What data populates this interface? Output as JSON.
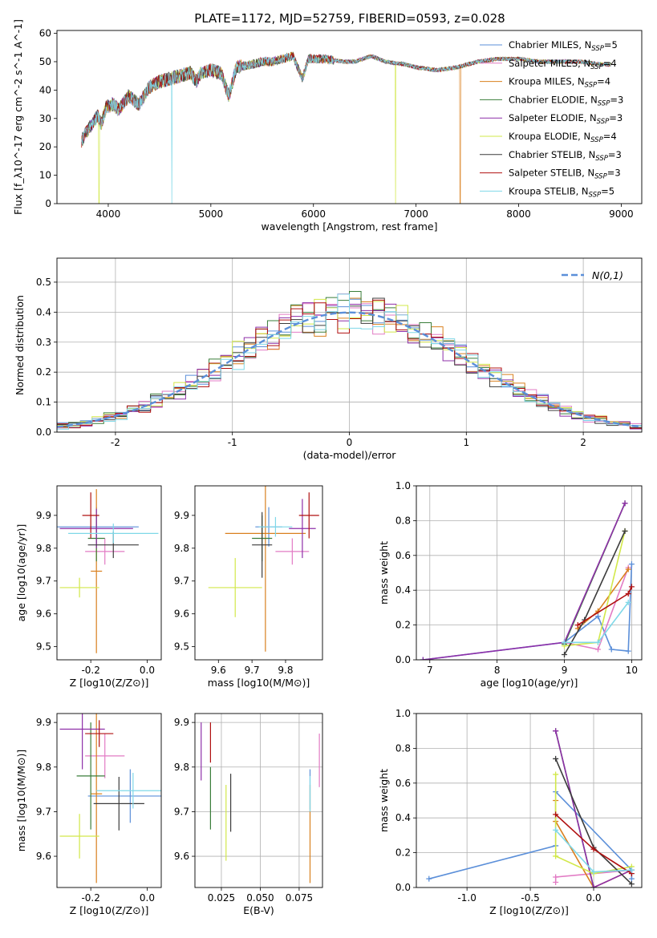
{
  "figure_title": "PLATE=1172, MJD=52759, FIBERID=0593, z=0.028",
  "colors": {
    "Chabrier MILES": "#5b8fd9",
    "Salpeter MILES": "#e27bc4",
    "Kroupa MILES": "#d9801e",
    "Chabrier ELODIE": "#3a7d3a",
    "Salpeter ELODIE": "#8e2fa8",
    "Kroupa ELODIE": "#d2e84a",
    "Chabrier STELIB": "#3c3c3c",
    "Salpeter STELIB": "#b01010",
    "Kroupa STELIB": "#7fd8e8"
  },
  "chart_data": [
    {
      "id": "spectrum",
      "type": "line",
      "xlabel": "wavelength [Angstrom, rest frame]",
      "ylabel": "Flux [f_λ10^-17 erg cm^-2 s^-1 A^-1]",
      "xlim": [
        3500,
        9200
      ],
      "ylim": [
        0,
        61
      ],
      "xticks": [
        4000,
        5000,
        6000,
        7000,
        8000,
        9000
      ],
      "yticks": [
        0,
        10,
        20,
        30,
        40,
        50,
        60
      ],
      "grid": false,
      "legend_position": "top-right",
      "legend": [
        {
          "name": "Chabrier MILES",
          "nssp": "5"
        },
        {
          "name": "Salpeter MILES",
          "nssp": "4"
        },
        {
          "name": "Kroupa MILES",
          "nssp": "4"
        },
        {
          "name": "Chabrier ELODIE",
          "nssp": "3"
        },
        {
          "name": "Salpeter ELODIE",
          "nssp": "3"
        },
        {
          "name": "Kroupa ELODIE",
          "nssp": "4"
        },
        {
          "name": "Chabrier STELIB",
          "nssp": "3"
        },
        {
          "name": "Salpeter STELIB",
          "nssp": "3"
        },
        {
          "name": "Kroupa STELIB",
          "nssp": "5"
        }
      ],
      "continuum": [
        [
          3740,
          22
        ],
        [
          3780,
          25
        ],
        [
          3840,
          28
        ],
        [
          3900,
          31
        ],
        [
          3930,
          28
        ],
        [
          3980,
          34
        ],
        [
          4050,
          35
        ],
        [
          4100,
          33
        ],
        [
          4200,
          38
        ],
        [
          4300,
          35
        ],
        [
          4400,
          41
        ],
        [
          4500,
          43
        ],
        [
          4600,
          44
        ],
        [
          4700,
          45
        ],
        [
          4800,
          46
        ],
        [
          4861,
          43
        ],
        [
          4900,
          46
        ],
        [
          5000,
          47
        ],
        [
          5100,
          46
        ],
        [
          5175,
          38
        ],
        [
          5250,
          48
        ],
        [
          5400,
          49
        ],
        [
          5500,
          50
        ],
        [
          5600,
          50
        ],
        [
          5700,
          51
        ],
        [
          5800,
          52
        ],
        [
          5893,
          44
        ],
        [
          5950,
          51
        ],
        [
          6100,
          51
        ],
        [
          6300,
          50
        ],
        [
          6400,
          50
        ],
        [
          6563,
          52
        ],
        [
          6700,
          50
        ],
        [
          6900,
          49
        ],
        [
          7000,
          48
        ],
        [
          7200,
          47
        ],
        [
          7400,
          48
        ],
        [
          7600,
          50
        ],
        [
          7800,
          51
        ],
        [
          8000,
          51
        ],
        [
          8200,
          50
        ],
        [
          8400,
          50
        ],
        [
          8600,
          50
        ],
        [
          8800,
          49
        ],
        [
          8900,
          49
        ]
      ],
      "dropouts": [
        {
          "series": "Kroupa STELIB",
          "x": 4620
        },
        {
          "series": "Kroupa ELODIE",
          "x": 6800
        },
        {
          "series": "Kroupa MILES",
          "x": 7430
        },
        {
          "series": "Kroupa ELODIE",
          "x": 3910
        }
      ]
    },
    {
      "id": "residuals",
      "type": "area",
      "xlabel": "(data-model)/error",
      "ylabel": "Normed distribution",
      "xlim": [
        -2.5,
        2.5
      ],
      "ylim": [
        0,
        0.58
      ],
      "xticks": [
        -2,
        -1,
        0,
        1,
        2
      ],
      "yticks": [
        0.0,
        0.1,
        0.2,
        0.3,
        0.4,
        0.5
      ],
      "grid": true,
      "legend_position": "top-right",
      "legend": [
        {
          "name": "N(0,1)"
        }
      ],
      "bins": {
        "start": -2.5,
        "width": 0.1,
        "count": 50
      }
    },
    {
      "id": "age_vs_Z",
      "type": "scatter",
      "xlabel": "Z [log10(Z/Z⊙)]",
      "ylabel": "age  [log10(age/yr)]",
      "xlim": [
        -0.32,
        0.05
      ],
      "ylim": [
        9.46,
        9.99
      ],
      "xticks": [
        -0.2,
        0.0
      ],
      "yticks": [
        9.5,
        9.6,
        9.7,
        9.8,
        9.9
      ],
      "grid": false,
      "points": [
        {
          "series": "Chabrier MILES",
          "x": -0.18,
          "y": 9.865,
          "xerr": 0.15,
          "yerr": 0.06
        },
        {
          "series": "Salpeter MILES",
          "x": -0.15,
          "y": 9.79,
          "xerr": 0.07,
          "yerr": 0.04
        },
        {
          "series": "Kroupa MILES",
          "x": -0.18,
          "y": 9.73,
          "xerr": 0.02,
          "yerr": 0.25
        },
        {
          "series": "Chabrier ELODIE",
          "x": -0.18,
          "y": 9.83,
          "xerr": 0.03,
          "yerr": 0.07
        },
        {
          "series": "Salpeter ELODIE",
          "x": -0.18,
          "y": 9.86,
          "xerr": 0.13,
          "yerr": 0.06
        },
        {
          "series": "Kroupa ELODIE",
          "x": -0.24,
          "y": 9.68,
          "xerr": 0.07,
          "yerr": 0.03
        },
        {
          "series": "Chabrier STELIB",
          "x": -0.12,
          "y": 9.81,
          "xerr": 0.09,
          "yerr": 0.04
        },
        {
          "series": "Salpeter STELIB",
          "x": -0.2,
          "y": 9.9,
          "xerr": 0.03,
          "yerr": 0.07
        },
        {
          "series": "Kroupa STELIB",
          "x": -0.12,
          "y": 9.845,
          "xerr": 0.16,
          "yerr": 0.03
        }
      ]
    },
    {
      "id": "age_vs_mass",
      "type": "scatter",
      "xlabel": "mass [log10(M/M⊙)]",
      "ylabel": "",
      "xlim": [
        9.53,
        9.91
      ],
      "ylim": [
        9.46,
        9.99
      ],
      "xticks": [
        9.6,
        9.7,
        9.8
      ],
      "yticks": [
        9.5,
        9.6,
        9.7,
        9.8,
        9.9
      ],
      "grid": false,
      "points": [
        {
          "series": "Chabrier MILES",
          "x": 9.75,
          "y": 9.865,
          "xerr": 0.04,
          "yerr": 0.06
        },
        {
          "series": "Salpeter MILES",
          "x": 9.82,
          "y": 9.79,
          "xerr": 0.05,
          "yerr": 0.04
        },
        {
          "series": "Kroupa MILES",
          "x": 9.74,
          "y": 9.845,
          "xerr": 0.12,
          "yerr": 0.36
        },
        {
          "series": "Chabrier ELODIE",
          "x": 9.73,
          "y": 9.83,
          "xerr": 0.03,
          "yerr": 0.07
        },
        {
          "series": "Salpeter ELODIE",
          "x": 9.85,
          "y": 9.86,
          "xerr": 0.04,
          "yerr": 0.09
        },
        {
          "series": "Kroupa ELODIE",
          "x": 9.65,
          "y": 9.68,
          "xerr": 0.08,
          "yerr": 0.09
        },
        {
          "series": "Chabrier STELIB",
          "x": 9.73,
          "y": 9.81,
          "xerr": 0.03,
          "yerr": 0.1
        },
        {
          "series": "Salpeter STELIB",
          "x": 9.87,
          "y": 9.9,
          "xerr": 0.03,
          "yerr": 0.07
        },
        {
          "series": "Kroupa STELIB",
          "x": 9.77,
          "y": 9.865,
          "xerr": 0.05,
          "yerr": 0.03
        }
      ]
    },
    {
      "id": "massweight_vs_age",
      "type": "line",
      "xlabel": "age  [log10(age/yr)]",
      "ylabel": "mass weight",
      "xlim": [
        6.8,
        10.15
      ],
      "ylim": [
        0.0,
        1.0
      ],
      "xticks": [
        7,
        8,
        9,
        10
      ],
      "yticks": [
        0.0,
        0.2,
        0.4,
        0.6,
        0.8,
        1.0
      ],
      "grid": true,
      "series": [
        {
          "name": "Chabrier MILES",
          "x": [
            6.9,
            9.0,
            9.5,
            9.7,
            9.95,
            10.0
          ],
          "y": [
            0.0,
            0.1,
            0.25,
            0.06,
            0.05,
            0.55
          ]
        },
        {
          "name": "Salpeter MILES",
          "x": [
            9.0,
            9.5,
            9.95
          ],
          "y": [
            0.1,
            0.06,
            0.53
          ]
        },
        {
          "name": "Kroupa MILES",
          "x": [
            9.2,
            9.5,
            9.95
          ],
          "y": [
            0.18,
            0.28,
            0.52
          ]
        },
        {
          "name": "Chabrier ELODIE",
          "x": [
            9.0,
            9.9
          ],
          "y": [
            0.09,
            0.9
          ]
        },
        {
          "name": "Salpeter ELODIE",
          "x": [
            6.9,
            9.0,
            9.9
          ],
          "y": [
            0.0,
            0.1,
            0.9
          ]
        },
        {
          "name": "Kroupa ELODIE",
          "x": [
            9.0,
            9.5,
            9.9
          ],
          "y": [
            0.08,
            0.1,
            0.74
          ]
        },
        {
          "name": "Chabrier STELIB",
          "x": [
            9.0,
            9.3,
            9.9
          ],
          "y": [
            0.03,
            0.23,
            0.74
          ]
        },
        {
          "name": "Salpeter STELIB",
          "x": [
            9.2,
            9.95,
            10.0
          ],
          "y": [
            0.2,
            0.38,
            0.42
          ]
        },
        {
          "name": "Kroupa STELIB",
          "x": [
            9.0,
            9.5,
            9.95
          ],
          "y": [
            0.1,
            0.1,
            0.33
          ]
        }
      ]
    },
    {
      "id": "mass_vs_Z",
      "type": "scatter",
      "xlabel": "Z [log10(Z/Z⊙)]",
      "ylabel": "mass [log10(M/M⊙)]",
      "xlim": [
        -0.32,
        0.05
      ],
      "ylim": [
        9.53,
        9.92
      ],
      "xticks": [
        -0.2,
        0.0
      ],
      "yticks": [
        9.6,
        9.7,
        9.8,
        9.9
      ],
      "grid": false,
      "points": [
        {
          "series": "Chabrier MILES",
          "x": -0.06,
          "y": 9.735,
          "xerr": 0.15,
          "yerr": 0.06
        },
        {
          "series": "Salpeter MILES",
          "x": -0.15,
          "y": 9.825,
          "xerr": 0.07,
          "yerr": 0.05
        },
        {
          "series": "Kroupa MILES",
          "x": -0.18,
          "y": 9.74,
          "xerr": 0.02,
          "yerr": 0.2
        },
        {
          "series": "Chabrier ELODIE",
          "x": -0.2,
          "y": 9.78,
          "xerr": 0.05,
          "yerr": 0.12
        },
        {
          "series": "Salpeter ELODIE",
          "x": -0.23,
          "y": 9.885,
          "xerr": 0.08,
          "yerr": 0.09
        },
        {
          "series": "Kroupa ELODIE",
          "x": -0.24,
          "y": 9.645,
          "xerr": 0.07,
          "yerr": 0.05
        },
        {
          "series": "Chabrier STELIB",
          "x": -0.1,
          "y": 9.718,
          "xerr": 0.09,
          "yerr": 0.06
        },
        {
          "series": "Salpeter STELIB",
          "x": -0.17,
          "y": 9.875,
          "xerr": 0.05,
          "yerr": 0.03
        },
        {
          "series": "Kroupa STELIB",
          "x": -0.05,
          "y": 9.747,
          "xerr": 0.13,
          "yerr": 0.04
        }
      ]
    },
    {
      "id": "mass_vs_ebv",
      "type": "scatter",
      "xlabel": "E(B-V)",
      "ylabel": "",
      "xlim": [
        0.008,
        0.09
      ],
      "ylim": [
        9.53,
        9.92
      ],
      "xticks": [
        0.025,
        0.05,
        0.075
      ],
      "ytick_labels": [
        "9.6",
        "9.7",
        "9.8",
        "9.9"
      ],
      "yticks": [
        9.6,
        9.7,
        9.8,
        9.9
      ],
      "xtick_labels": [
        "0.025",
        "0.050",
        "0.075"
      ],
      "grid": true,
      "points": [
        {
          "series": "Chabrier MILES",
          "x": 0.082,
          "y": 9.75,
          "yerr": 0.045
        },
        {
          "series": "Salpeter MILES",
          "x": 0.088,
          "y": 9.815,
          "yerr": 0.06
        },
        {
          "series": "Kroupa MILES",
          "x": 0.082,
          "y": 9.65,
          "yerr": 0.11
        },
        {
          "series": "Chabrier ELODIE",
          "x": 0.018,
          "y": 9.73,
          "yerr": 0.07
        },
        {
          "series": "Salpeter ELODIE",
          "x": 0.012,
          "y": 9.835,
          "yerr": 0.065
        },
        {
          "series": "Kroupa ELODIE",
          "x": 0.028,
          "y": 9.675,
          "yerr": 0.085
        },
        {
          "series": "Chabrier STELIB",
          "x": 0.031,
          "y": 9.72,
          "yerr": 0.065
        },
        {
          "series": "Salpeter STELIB",
          "x": 0.018,
          "y": 9.855,
          "yerr": 0.045
        },
        {
          "series": "Kroupa STELIB",
          "x": 0.082,
          "y": 9.74,
          "yerr": 0.04
        }
      ]
    },
    {
      "id": "massweight_vs_Z",
      "type": "line",
      "xlabel": "Z [log10(Z/Z⊙)]",
      "ylabel": "mass weight",
      "xlim": [
        -1.4,
        0.38
      ],
      "ylim": [
        0.0,
        1.0
      ],
      "xticks": [
        -1.0,
        -0.5,
        0.0
      ],
      "yticks": [
        0.0,
        0.2,
        0.4,
        0.6,
        0.8,
        1.0
      ],
      "grid": true,
      "series": [
        {
          "name": "Chabrier MILES",
          "x": [
            -1.3,
            -0.3,
            -0.3,
            0.3,
            0.3
          ],
          "y": [
            0.05,
            0.24,
            0.55,
            0.1,
            0.05
          ]
        },
        {
          "name": "Salpeter MILES",
          "x": [
            -0.3,
            -0.3,
            0.3
          ],
          "y": [
            0.03,
            0.06,
            0.1
          ]
        },
        {
          "name": "Kroupa MILES",
          "x": [
            -0.3,
            -0.3,
            0.0,
            0.3
          ],
          "y": [
            0.5,
            0.38,
            0.0,
            0.1
          ]
        },
        {
          "name": "Chabrier ELODIE",
          "x": [
            -0.3,
            0.0
          ],
          "y": [
            0.9,
            0.0
          ]
        },
        {
          "name": "Salpeter ELODIE",
          "x": [
            -0.3,
            0.0,
            0.3
          ],
          "y": [
            0.9,
            0.0,
            0.1
          ]
        },
        {
          "name": "Kroupa ELODIE",
          "x": [
            -0.3,
            -0.3,
            0.0,
            0.3
          ],
          "y": [
            0.65,
            0.18,
            0.08,
            0.12
          ]
        },
        {
          "name": "Chabrier STELIB",
          "x": [
            -0.3,
            0.0,
            0.3
          ],
          "y": [
            0.74,
            0.23,
            0.02
          ]
        },
        {
          "name": "Salpeter STELIB",
          "x": [
            -0.3,
            0.0,
            0.3
          ],
          "y": [
            0.42,
            0.22,
            0.08
          ]
        },
        {
          "name": "Kroupa STELIB",
          "x": [
            -0.3,
            0.0,
            0.3
          ],
          "y": [
            0.33,
            0.09,
            0.1
          ]
        }
      ]
    }
  ]
}
